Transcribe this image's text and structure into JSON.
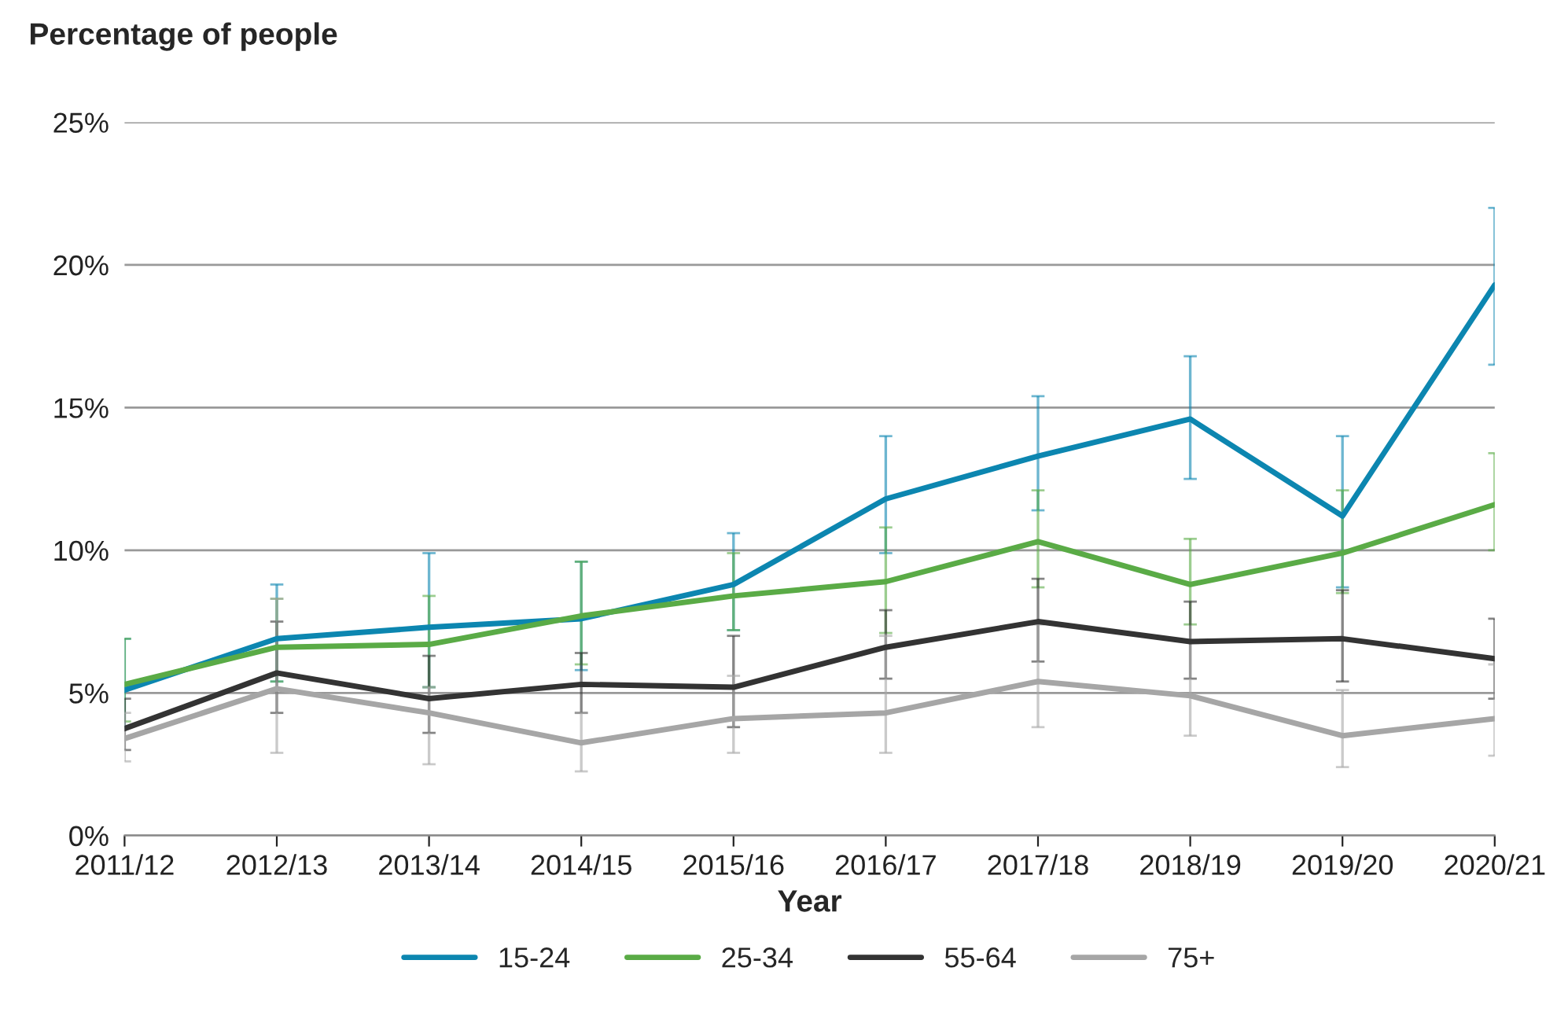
{
  "chart_data": {
    "type": "line",
    "ylabel": "Percentage of people",
    "xlabel": "Year",
    "categories": [
      "2011/12",
      "2012/13",
      "2013/14",
      "2014/15",
      "2015/16",
      "2016/17",
      "2017/18",
      "2018/19",
      "2019/20",
      "2020/21"
    ],
    "series": [
      {
        "name": "15-24",
        "color": "#0c86b0",
        "values": [
          5.1,
          6.9,
          7.3,
          7.6,
          8.8,
          11.8,
          13.3,
          14.6,
          11.2,
          19.3
        ],
        "errors": [
          [
            3.8,
            6.9
          ],
          [
            5.4,
            8.8
          ],
          [
            5.2,
            9.9
          ],
          [
            5.8,
            9.6
          ],
          [
            7.2,
            10.6
          ],
          [
            9.9,
            14.0
          ],
          [
            11.4,
            15.4
          ],
          [
            12.5,
            16.8
          ],
          [
            8.7,
            14.0
          ],
          [
            16.5,
            22.0
          ]
        ]
      },
      {
        "name": "25-34",
        "color": "#5aab46",
        "values": [
          5.3,
          6.6,
          6.7,
          7.7,
          8.4,
          8.9,
          10.3,
          8.8,
          9.9,
          11.6
        ],
        "errors": [
          [
            4.0,
            6.9
          ],
          [
            5.4,
            8.3
          ],
          [
            5.2,
            8.4
          ],
          [
            6.0,
            9.6
          ],
          [
            7.2,
            9.9
          ],
          [
            7.1,
            10.8
          ],
          [
            8.7,
            12.1
          ],
          [
            7.4,
            10.4
          ],
          [
            8.5,
            12.1
          ],
          [
            10.0,
            13.4
          ]
        ]
      },
      {
        "name": "55-64",
        "color": "#333333",
        "values": [
          3.75,
          5.7,
          4.8,
          5.3,
          5.2,
          6.6,
          7.5,
          6.8,
          6.9,
          6.2
        ],
        "errors": [
          [
            3.0,
            4.8
          ],
          [
            4.3,
            7.5
          ],
          [
            3.6,
            6.3
          ],
          [
            4.3,
            6.4
          ],
          [
            3.8,
            7.0
          ],
          [
            5.5,
            7.9
          ],
          [
            6.1,
            9.0
          ],
          [
            5.5,
            8.2
          ],
          [
            5.4,
            8.6
          ],
          [
            4.8,
            7.6
          ]
        ]
      },
      {
        "name": "75+",
        "color": "#a6a6a6",
        "values": [
          3.4,
          5.15,
          4.3,
          3.25,
          4.1,
          4.3,
          5.4,
          4.9,
          3.5,
          4.1
        ],
        "errors": [
          [
            2.6,
            4.3
          ],
          [
            2.9,
            8.3
          ],
          [
            2.5,
            5.2
          ],
          [
            2.25,
            4.3
          ],
          [
            2.9,
            5.6
          ],
          [
            2.9,
            7.0
          ],
          [
            3.8,
            7.4
          ],
          [
            3.5,
            6.8
          ],
          [
            2.4,
            5.1
          ],
          [
            2.8,
            6.0
          ]
        ]
      }
    ],
    "ylim": [
      0,
      25
    ],
    "yticks": [
      {
        "value": 0,
        "label": "0%"
      },
      {
        "value": 5,
        "label": "5%"
      },
      {
        "value": 10,
        "label": "10%"
      },
      {
        "value": 15,
        "label": "15%"
      },
      {
        "value": 20,
        "label": "20%"
      },
      {
        "value": 25,
        "label": "25%"
      }
    ],
    "grid": "y",
    "legend": "bottom",
    "marker": "none",
    "line_style": "solid"
  }
}
